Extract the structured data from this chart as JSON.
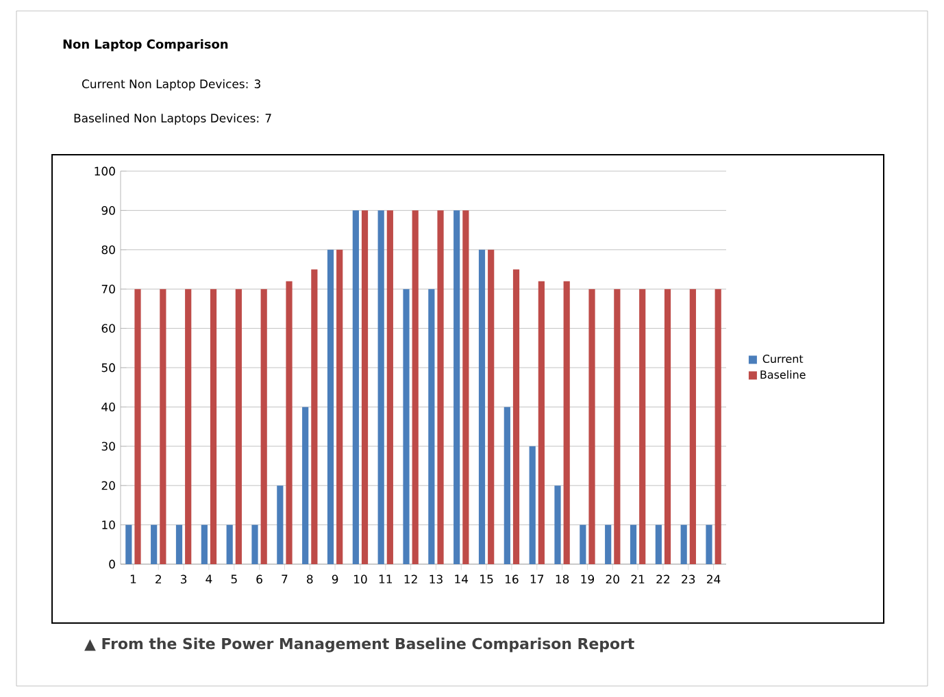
{
  "chart_data": {
    "type": "bar",
    "title": "Non Laptop Comparison",
    "annotations": [
      "Current Non Laptop Devices:   3",
      "Baselined Non Laptops Devices:   7",
      "▲ From the Site Power Management Baseline Comparison Report"
    ],
    "categories": [
      "1",
      "2",
      "3",
      "4",
      "5",
      "6",
      "7",
      "8",
      "9",
      "10",
      "11",
      "12",
      "13",
      "14",
      "15",
      "16",
      "17",
      "18",
      "19",
      "20",
      "21",
      "22",
      "23",
      "24"
    ],
    "series": [
      {
        "name": "Current",
        "color": "#4a7ebb",
        "values": [
          10,
          10,
          10,
          10,
          10,
          10,
          20,
          40,
          80,
          90,
          90,
          70,
          70,
          90,
          80,
          40,
          30,
          20,
          10,
          10,
          10,
          10,
          10,
          10
        ]
      },
      {
        "name": "Baseline",
        "color": "#be4b48",
        "values": [
          70,
          70,
          70,
          70,
          70,
          70,
          72,
          75,
          80,
          90,
          90,
          90,
          90,
          90,
          80,
          75,
          72,
          72,
          70,
          70,
          70,
          70,
          70,
          70
        ]
      }
    ],
    "ylim": [
      0,
      100
    ],
    "yticks": [
      0,
      10,
      20,
      30,
      40,
      50,
      60,
      70,
      80,
      90,
      100
    ],
    "grid": "y",
    "legend": "right"
  }
}
